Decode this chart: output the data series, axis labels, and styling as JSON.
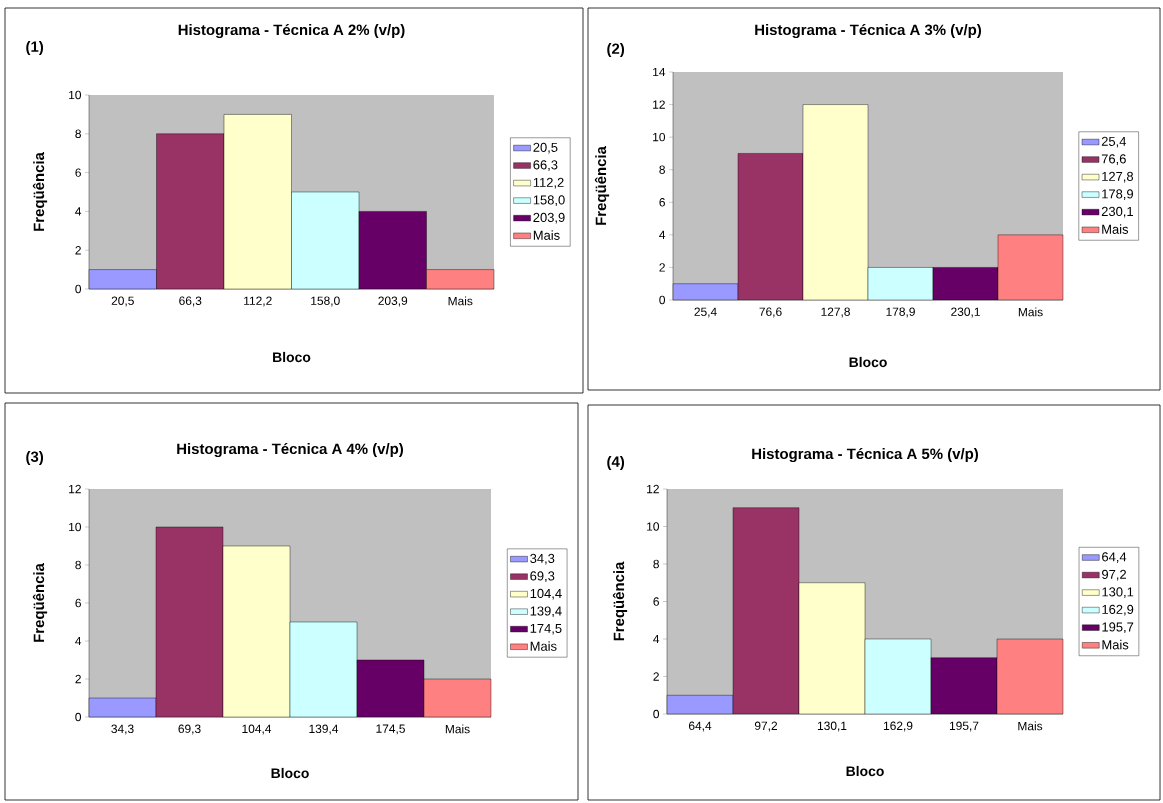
{
  "chart_data": [
    {
      "type": "bar",
      "stacked": true,
      "title": "Histograma - Técnica A 2% (v/p)",
      "annotations": [
        "(1)"
      ],
      "xlabel": "Bloco",
      "ylabel": "Freqüência",
      "categories": [
        "20,5",
        "66,3",
        "112,2",
        "158,0",
        "203,9",
        "Mais"
      ],
      "ylim": [
        0,
        10
      ],
      "yticks": [
        0,
        2,
        4,
        6,
        8,
        10
      ],
      "legend": "right",
      "series": [
        {
          "name": "20,5",
          "color": "#9999ff",
          "values": [
            1,
            null,
            null,
            null,
            null,
            null
          ]
        },
        {
          "name": "66,3",
          "color": "#993366",
          "values": [
            null,
            8,
            null,
            null,
            null,
            null
          ]
        },
        {
          "name": "112,2",
          "color": "#ffffcc",
          "values": [
            null,
            null,
            9,
            null,
            null,
            null
          ]
        },
        {
          "name": "158,0",
          "color": "#ccffff",
          "values": [
            null,
            null,
            null,
            5,
            null,
            null
          ]
        },
        {
          "name": "203,9",
          "color": "#660066",
          "values": [
            null,
            null,
            null,
            null,
            4,
            null
          ]
        },
        {
          "name": "Mais",
          "color": "#ff8080",
          "values": [
            null,
            null,
            null,
            null,
            null,
            1
          ]
        }
      ]
    },
    {
      "type": "bar",
      "stacked": true,
      "title": "Histograma - Técnica A 3% (v/p)",
      "annotations": [
        "(2)"
      ],
      "xlabel": "Bloco",
      "ylabel": "Freqüência",
      "categories": [
        "25,4",
        "76,6",
        "127,8",
        "178,9",
        "230,1",
        "Mais"
      ],
      "ylim": [
        0,
        14
      ],
      "yticks": [
        0,
        2,
        4,
        6,
        8,
        10,
        12,
        14
      ],
      "legend": "right",
      "series": [
        {
          "name": "25,4",
          "color": "#9999ff",
          "values": [
            1,
            null,
            null,
            null,
            null,
            null
          ]
        },
        {
          "name": "76,6",
          "color": "#993366",
          "values": [
            null,
            9,
            null,
            null,
            null,
            null
          ]
        },
        {
          "name": "127,8",
          "color": "#ffffcc",
          "values": [
            null,
            null,
            12,
            null,
            null,
            null
          ]
        },
        {
          "name": "178,9",
          "color": "#ccffff",
          "values": [
            null,
            null,
            null,
            2,
            null,
            null
          ]
        },
        {
          "name": "230,1",
          "color": "#660066",
          "values": [
            null,
            null,
            null,
            null,
            2,
            null
          ]
        },
        {
          "name": "Mais",
          "color": "#ff8080",
          "values": [
            null,
            null,
            null,
            null,
            null,
            4
          ]
        }
      ]
    },
    {
      "type": "bar",
      "stacked": true,
      "title": "Histograma - Técnica A 4% (v/p)",
      "annotations": [
        "(3)"
      ],
      "xlabel": "Bloco",
      "ylabel": "Freqüência",
      "categories": [
        "34,3",
        "69,3",
        "104,4",
        "139,4",
        "174,5",
        "Mais"
      ],
      "ylim": [
        0,
        12
      ],
      "yticks": [
        0,
        2,
        4,
        6,
        8,
        10,
        12
      ],
      "legend": "right",
      "series": [
        {
          "name": "34,3",
          "color": "#9999ff",
          "values": [
            1,
            null,
            null,
            null,
            null,
            null
          ]
        },
        {
          "name": "69,3",
          "color": "#993366",
          "values": [
            null,
            10,
            null,
            null,
            null,
            null
          ]
        },
        {
          "name": "104,4",
          "color": "#ffffcc",
          "values": [
            null,
            null,
            9,
            null,
            null,
            null
          ]
        },
        {
          "name": "139,4",
          "color": "#ccffff",
          "values": [
            null,
            null,
            null,
            5,
            null,
            null
          ]
        },
        {
          "name": "174,5",
          "color": "#660066",
          "values": [
            null,
            null,
            null,
            null,
            3,
            null
          ]
        },
        {
          "name": "Mais",
          "color": "#ff8080",
          "values": [
            null,
            null,
            null,
            null,
            null,
            2
          ]
        }
      ]
    },
    {
      "type": "bar",
      "stacked": true,
      "title": "Histograma - Técnica A 5% (v/p)",
      "annotations": [
        "(4)"
      ],
      "xlabel": "Bloco",
      "ylabel": "Freqüência",
      "categories": [
        "64,4",
        "97,2",
        "130,1",
        "162,9",
        "195,7",
        "Mais"
      ],
      "ylim": [
        0,
        12
      ],
      "yticks": [
        0,
        2,
        4,
        6,
        8,
        10,
        12
      ],
      "legend": "right",
      "series": [
        {
          "name": "64,4",
          "color": "#9999ff",
          "values": [
            1,
            null,
            null,
            null,
            null,
            null
          ]
        },
        {
          "name": "97,2",
          "color": "#993366",
          "values": [
            null,
            11,
            null,
            null,
            null,
            null
          ]
        },
        {
          "name": "130,1",
          "color": "#ffffcc",
          "values": [
            null,
            null,
            7,
            null,
            null,
            null
          ]
        },
        {
          "name": "162,9",
          "color": "#ccffff",
          "values": [
            null,
            null,
            null,
            4,
            null,
            null
          ]
        },
        {
          "name": "195,7",
          "color": "#660066",
          "values": [
            null,
            null,
            null,
            null,
            3,
            null
          ]
        },
        {
          "name": "Mais",
          "color": "#ff8080",
          "values": [
            null,
            null,
            null,
            null,
            null,
            4
          ]
        }
      ]
    }
  ]
}
